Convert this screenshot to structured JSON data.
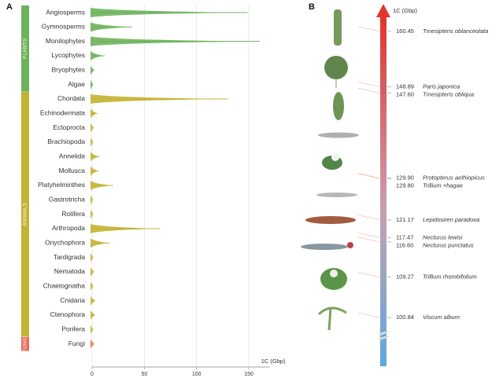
{
  "chart_data": [
    {
      "type": "violin",
      "panel": "A",
      "xlabel": "1C (Gbp)",
      "xlim": [
        0,
        170
      ],
      "xticks": [
        0,
        50,
        100,
        150
      ],
      "grid": true,
      "groups": [
        {
          "name": "PLANTS",
          "color": "#6db35b",
          "categories": [
            "Angiosperms",
            "Gymnosperms",
            "Monilophytes",
            "Lycophytes",
            "Bryophytes",
            "Algae"
          ],
          "values": [
            148.89,
            38,
            160.45,
            12,
            2,
            1
          ]
        },
        {
          "name": "ANIMALS",
          "color": "#c4b232",
          "categories": [
            "Chordata",
            "Echinodermata",
            "Ectoprocta",
            "Brachiopoda",
            "Annelida",
            "Mollusca",
            "Platyhelminthes",
            "Gastrotricha",
            "Rotifera",
            "Arthropoda",
            "Onychophora",
            "Tardigrada",
            "Nematoda",
            "Chaetognatha",
            "Cnidaria",
            "Ctenophora",
            "Porifera"
          ],
          "values": [
            129.9,
            5,
            1.5,
            1,
            7,
            6,
            20,
            1,
            1,
            65,
            17,
            1,
            2,
            1,
            3,
            3,
            1
          ]
        },
        {
          "name": "FUNGI",
          "color": "#e8705a",
          "categories": [
            "Fungi"
          ],
          "values": [
            2
          ]
        }
      ]
    },
    {
      "type": "scale",
      "panel": "B",
      "ylabel": "1C (Gbp)",
      "ylim": [
        96.6,
        165
      ],
      "values": [
        160.45,
        148.89,
        147.6,
        129.9,
        129.8,
        121.17,
        117.47,
        116.6,
        109.27,
        100.84
      ],
      "value_labels": [
        "160.45",
        "148.89",
        "147.60",
        "129.90",
        "129.80",
        "121.17",
        "117.47",
        "116.60",
        "109.27",
        "100.84"
      ],
      "names": [
        "Tmesipteris oblanceolata",
        "Paris japonica",
        "Tmesipteris obliqua",
        "Protopterus aethiopicus",
        "Trillium ×hagae",
        "Lepidosiren paradoxa",
        "Necturus lewisi",
        "Necturus punctatus",
        "Trillium rhombifolium",
        "Viscum album"
      ]
    }
  ]
}
